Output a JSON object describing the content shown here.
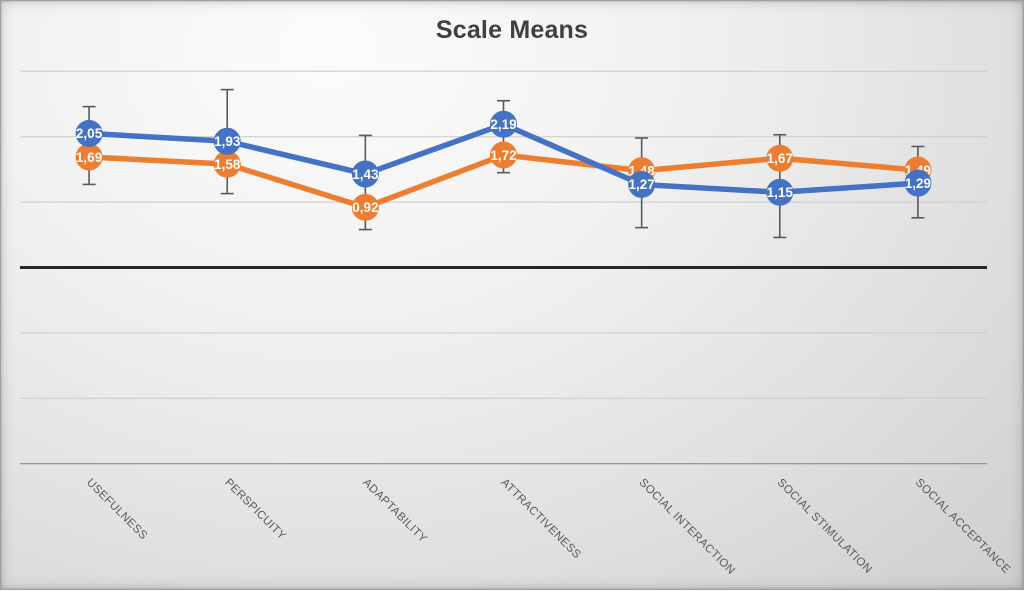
{
  "chart_data": {
    "type": "line",
    "title": "Scale Means",
    "categories": [
      "USEFULNESS",
      "PERSPICUITY",
      "ADAPTABILITY",
      "ATTRACTIVENESS",
      "SOCIAL INTERACTION",
      "SOCIAL STIMULATION",
      "SOCIAL ACCEPTANCE"
    ],
    "series": [
      {
        "name": "blue",
        "color": "#4472C4",
        "values": [
          2.05,
          1.93,
          1.43,
          2.19,
          1.27,
          1.15,
          1.29
        ],
        "labels": [
          "2,05",
          "1,93",
          "1,43",
          "2,19",
          "1,27",
          "1,15",
          "1,29"
        ]
      },
      {
        "name": "orange",
        "color": "#ED7D31",
        "values": [
          1.69,
          1.58,
          0.92,
          1.72,
          1.48,
          1.67,
          1.49
        ],
        "labels": [
          "1,69",
          "1,58",
          "0,92",
          "1,72",
          "1,48",
          "1,67",
          "1,49"
        ]
      }
    ],
    "error_whiskers": [
      {
        "top": 2.46,
        "bottom": 1.27
      },
      {
        "top": 2.72,
        "bottom": 1.13
      },
      {
        "top": 2.02,
        "bottom": 0.58
      },
      {
        "top": 2.55,
        "bottom": 1.45
      },
      {
        "top": 1.98,
        "bottom": 0.61
      },
      {
        "top": 2.03,
        "bottom": 0.46
      },
      {
        "top": 1.85,
        "bottom": 0.76
      }
    ],
    "ylim": [
      -3,
      3
    ],
    "gridline_values": [
      3,
      2,
      1,
      0,
      -1,
      -2,
      -3
    ],
    "grid": true,
    "legend": "none",
    "decimal_separator": ",",
    "colors": {
      "grid": "#c9c9c9",
      "zero_line": "#262626",
      "axis_line": "#8c8c8c",
      "error_bar": "#595959",
      "title": "#404040",
      "category_label": "#595959",
      "data_label": "#ffffff"
    }
  }
}
